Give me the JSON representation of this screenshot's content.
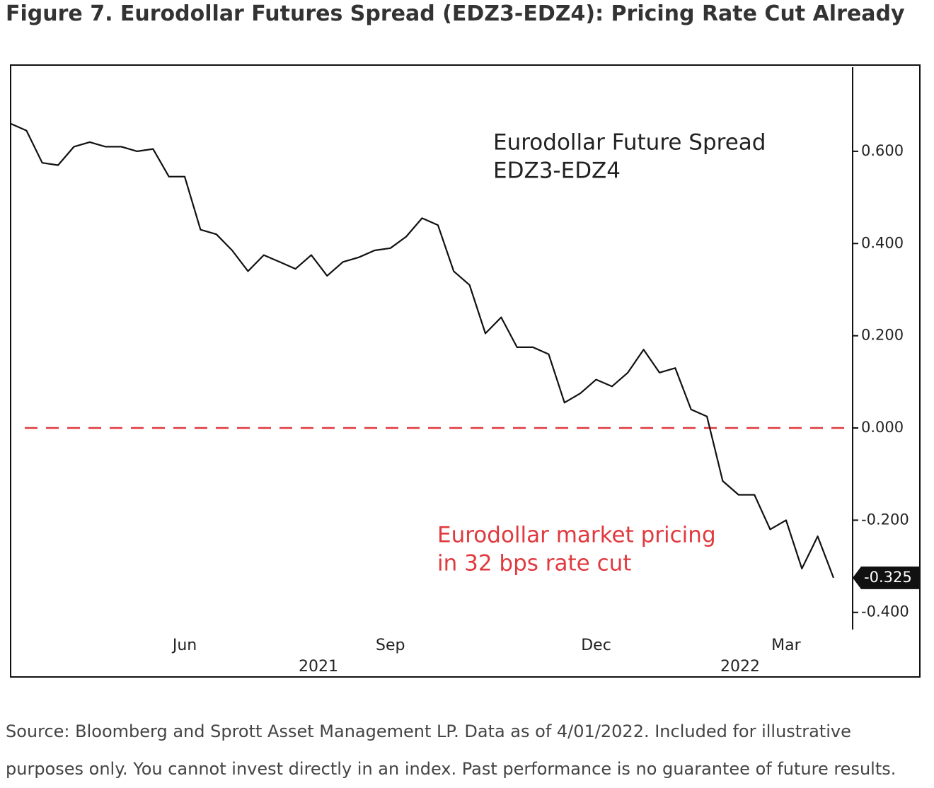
{
  "chart_data": {
    "type": "line",
    "title": "Figure 7. Eurodollar Futures Spread (EDZ3-EDZ4): Pricing Rate Cut Already",
    "source": "Source: Bloomberg and Sprott Asset Management LP. Data as of 4/01/2022. Included for illustrative purposes only. You cannot invest directly in an index. Past performance is no guarantee of future results.",
    "annotations": [
      "Eurodollar Future Spread",
      "EDZ3-EDZ4"
    ],
    "highlight_annotations": [
      "Eurodollar market pricing",
      "in 32 bps rate cut"
    ],
    "highlight_color": "#e0393e",
    "categories": [
      null,
      null,
      null,
      null,
      null,
      null,
      null,
      null,
      null,
      null,
      null,
      "Jun",
      null,
      null,
      null,
      null,
      null,
      null,
      null,
      null,
      null,
      null,
      null,
      null,
      "Sep",
      null,
      null,
      null,
      null,
      null,
      null,
      null,
      null,
      null,
      null,
      null,
      null,
      "Dec",
      null,
      null,
      null,
      null,
      null,
      null,
      null,
      null,
      null,
      null,
      null,
      "Mar",
      null,
      null,
      null
    ],
    "x_group_labels": [
      "2021",
      "2022"
    ],
    "series": [
      {
        "name": "EDZ3-EDZ4",
        "color": "#111111",
        "values": [
          0.66,
          0.645,
          0.575,
          0.57,
          0.61,
          0.62,
          0.61,
          0.61,
          0.6,
          0.605,
          0.545,
          0.545,
          0.43,
          0.42,
          0.385,
          0.34,
          0.375,
          0.36,
          0.345,
          0.375,
          0.33,
          0.36,
          0.37,
          0.385,
          0.39,
          0.415,
          0.455,
          0.44,
          0.34,
          0.31,
          0.205,
          0.24,
          0.175,
          0.175,
          0.16,
          0.055,
          0.075,
          0.105,
          0.09,
          0.12,
          0.17,
          0.12,
          0.13,
          0.04,
          0.025,
          -0.115,
          -0.145,
          -0.145,
          -0.22,
          -0.2,
          -0.305,
          -0.235,
          -0.325
        ],
        "value_labels": [
          null,
          null,
          null,
          null,
          null,
          null,
          null,
          null,
          null,
          null,
          null,
          null,
          null,
          null,
          null,
          null,
          null,
          null,
          null,
          null,
          null,
          null,
          null,
          null,
          null,
          null,
          null,
          null,
          null,
          null,
          null,
          null,
          null,
          null,
          null,
          null,
          null,
          null,
          null,
          null,
          null,
          null,
          null,
          null,
          null,
          null,
          null,
          null,
          null,
          null,
          null,
          null,
          "-0.325"
        ]
      }
    ],
    "reference_line": {
      "value": 0,
      "color": "#e0393e",
      "dashed": true
    },
    "ylim": [
      -0.54,
      0.787
    ],
    "yticks": [
      {
        "value": -0.4,
        "label": "-0.400"
      },
      {
        "value": -0.2,
        "label": "-0.200"
      },
      {
        "value": 0,
        "label": "0.000"
      },
      {
        "value": 0.2,
        "label": "0.200"
      },
      {
        "value": 0.4,
        "label": "0.400"
      },
      {
        "value": 0.6,
        "label": "0.600"
      }
    ],
    "y_axis_side": "right",
    "grid": false
  }
}
